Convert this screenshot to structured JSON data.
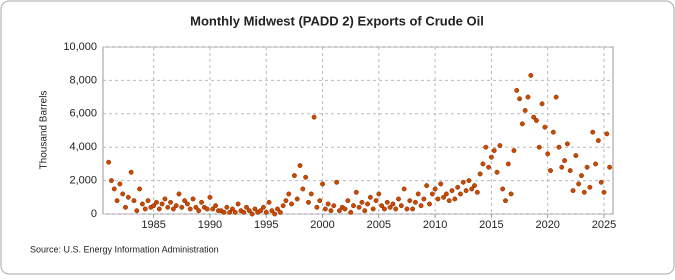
{
  "chart_data": {
    "type": "scatter",
    "title": "Monthly Midwest (PADD 2) Exports of Crude Oil",
    "y_label": "Thousand Barrels",
    "source": "Source: U.S. Energy Information Administration",
    "color": "#cc4a00",
    "grid": true,
    "xlim": [
      1980.5,
      2025.8
    ],
    "xticks": [
      1985,
      1990,
      1995,
      2000,
      2005,
      2010,
      2015,
      2020,
      2025
    ],
    "ylim": [
      0,
      10000
    ],
    "yticks": [
      0,
      {
        "value": 2000,
        "label": "2,000"
      },
      {
        "value": 4000,
        "label": "4,000"
      },
      {
        "value": 6000,
        "label": "6,000"
      },
      {
        "value": 8000,
        "label": "8,000"
      },
      {
        "value": 10000,
        "label": "10,000"
      }
    ],
    "x": [
      1981,
      1981.25,
      1981.5,
      1981.75,
      1982,
      1982.25,
      1982.5,
      1982.75,
      1983,
      1983.25,
      1983.5,
      1983.75,
      1984,
      1984.25,
      1984.5,
      1984.75,
      1985,
      1985.25,
      1985.5,
      1985.75,
      1986,
      1986.25,
      1986.5,
      1986.75,
      1987,
      1987.25,
      1987.5,
      1987.75,
      1988,
      1988.25,
      1988.5,
      1988.75,
      1989,
      1989.25,
      1989.5,
      1989.75,
      1990,
      1990.25,
      1990.5,
      1990.75,
      1991,
      1991.25,
      1991.5,
      1991.75,
      1992,
      1992.25,
      1992.5,
      1992.75,
      1993,
      1993.25,
      1993.5,
      1993.75,
      1994,
      1994.25,
      1994.5,
      1994.75,
      1995,
      1995.25,
      1995.5,
      1995.75,
      1996,
      1996.25,
      1996.5,
      1996.75,
      1997,
      1997.25,
      1997.5,
      1997.75,
      1998,
      1998.25,
      1998.5,
      1998.75,
      1999,
      1999.25,
      1999.5,
      1999.75,
      2000,
      2000.25,
      2000.5,
      2000.75,
      2001,
      2001.25,
      2001.5,
      2001.75,
      2002,
      2002.25,
      2002.5,
      2002.75,
      2003,
      2003.25,
      2003.5,
      2003.75,
      2004,
      2004.25,
      2004.5,
      2004.75,
      2005,
      2005.25,
      2005.5,
      2005.75,
      2006,
      2006.25,
      2006.5,
      2006.75,
      2007,
      2007.25,
      2007.5,
      2007.75,
      2008,
      2008.25,
      2008.5,
      2008.75,
      2009,
      2009.25,
      2009.5,
      2009.75,
      2010,
      2010.25,
      2010.5,
      2010.75,
      2011,
      2011.25,
      2011.5,
      2011.75,
      2012,
      2012.25,
      2012.5,
      2012.75,
      2013,
      2013.25,
      2013.5,
      2013.75,
      2014,
      2014.25,
      2014.5,
      2014.75,
      2015,
      2015.25,
      2015.5,
      2015.75,
      2016,
      2016.25,
      2016.5,
      2016.75,
      2017,
      2017.25,
      2017.5,
      2017.75,
      2018,
      2018.25,
      2018.5,
      2018.75,
      2019,
      2019.25,
      2019.5,
      2019.75,
      2020,
      2020.25,
      2020.5,
      2020.75,
      2021,
      2021.25,
      2021.5,
      2021.75,
      2022,
      2022.25,
      2022.5,
      2022.75,
      2023,
      2023.25,
      2023.5,
      2023.75,
      2024,
      2024.25,
      2024.5,
      2024.75,
      2025,
      2025.25,
      2025.5
    ],
    "values": [
      3100,
      2000,
      1500,
      800,
      1800,
      1200,
      400,
      1000,
      2500,
      800,
      200,
      1500,
      600,
      300,
      800,
      400,
      500,
      700,
      300,
      600,
      900,
      400,
      700,
      300,
      500,
      1200,
      400,
      800,
      600,
      300,
      900,
      400,
      200,
      700,
      400,
      300,
      1000,
      300,
      500,
      200,
      200,
      100,
      400,
      100,
      300,
      100,
      600,
      200,
      100,
      400,
      200,
      0,
      300,
      100,
      200,
      400,
      100,
      700,
      200,
      0,
      300,
      100,
      500,
      800,
      1200,
      600,
      2300,
      900,
      2900,
      1500,
      2200,
      700,
      1200,
      5800,
      400,
      800,
      1800,
      300,
      600,
      200,
      500,
      1900,
      200,
      400,
      300,
      800,
      100,
      500,
      1300,
      400,
      700,
      200,
      600,
      1000,
      300,
      800,
      1200,
      500,
      300,
      700,
      400,
      600,
      300,
      900,
      500,
      1500,
      300,
      800,
      300,
      700,
      1200,
      500,
      900,
      1700,
      600,
      1200,
      1500,
      900,
      1800,
      1000,
      1200,
      800,
      1400,
      900,
      1600,
      1200,
      1900,
      1400,
      2000,
      1500,
      1700,
      1300,
      2400,
      3000,
      4000,
      2800,
      3400,
      3800,
      2500,
      4100,
      1500,
      800,
      3000,
      1200,
      3800,
      7400,
      6900,
      5400,
      6200,
      7000,
      8300,
      5800,
      5600,
      4000,
      6600,
      5200,
      3600,
      2600,
      4900,
      7000,
      4000,
      2800,
      3200,
      4200,
      2600,
      1400,
      3500,
      1800,
      2300,
      1300,
      2800,
      1600,
      4900,
      3000,
      4400,
      1900,
      1300,
      4800,
      2800
    ]
  }
}
